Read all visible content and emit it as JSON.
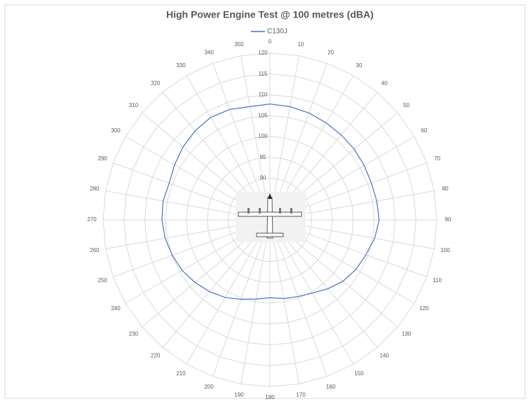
{
  "chart_data": {
    "type": "radar",
    "title": "High Power Engine Test @ 100 metres (dBA)",
    "categories": [
      "0",
      "10",
      "20",
      "30",
      "40",
      "50",
      "60",
      "70",
      "80",
      "90",
      "100",
      "110",
      "120",
      "130",
      "140",
      "150",
      "160",
      "170",
      "180",
      "190",
      "200",
      "210",
      "220",
      "230",
      "240",
      "250",
      "260",
      "270",
      "280",
      "290",
      "300",
      "310",
      "320",
      "330",
      "340",
      "350"
    ],
    "series": [
      {
        "name": "C130J",
        "color": "#4472c4",
        "values": [
          107.8,
          107.6,
          107.3,
          106.9,
          106.6,
          106.4,
          106.1,
          105.9,
          106.0,
          106.2,
          105.5,
          104.5,
          103.8,
          102.9,
          101.6,
          100.3,
          99.6,
          99.2,
          98.7,
          99.3,
          100.3,
          101.5,
          102.5,
          103.4,
          104.3,
          104.9,
          105.5,
          105.9,
          106.0,
          105.7,
          106.4,
          107.2,
          107.9,
          108.4,
          108.2,
          107.6
        ]
      }
    ],
    "ylim": [
      80,
      120
    ],
    "yticks": [
      90,
      95,
      100,
      105,
      110,
      115,
      120
    ],
    "grid": true,
    "legend": "top"
  }
}
